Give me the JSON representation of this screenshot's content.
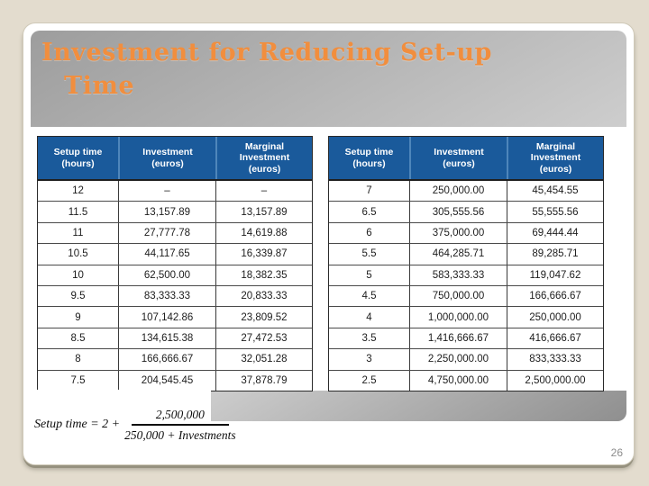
{
  "slide": {
    "title": "Investment for Reducing Set-up Time",
    "title_lines": [
      "Investment for Reducing Set-up",
      "Time"
    ],
    "page_number": "26"
  },
  "tables": {
    "headers": [
      [
        "Setup time",
        "(hours)"
      ],
      [
        "Investment",
        "(euros)"
      ],
      [
        "Marginal",
        "Investment",
        "(euros)"
      ]
    ],
    "left": {
      "rows": [
        [
          "12",
          "–",
          "–"
        ],
        [
          "11.5",
          "13,157.89",
          "13,157.89"
        ],
        [
          "11",
          "27,777.78",
          "14,619.88"
        ],
        [
          "10.5",
          "44,117.65",
          "16,339.87"
        ],
        [
          "10",
          "62,500.00",
          "18,382.35"
        ],
        [
          "9.5",
          "83,333.33",
          "20,833.33"
        ],
        [
          "9",
          "107,142.86",
          "23,809.52"
        ],
        [
          "8.5",
          "134,615.38",
          "27,472.53"
        ],
        [
          "8",
          "166,666.67",
          "32,051.28"
        ],
        [
          "7.5",
          "204,545.45",
          "37,878.79"
        ]
      ]
    },
    "right": {
      "rows": [
        [
          "7",
          "250,000.00",
          "45,454.55"
        ],
        [
          "6.5",
          "305,555.56",
          "55,555.56"
        ],
        [
          "6",
          "375,000.00",
          "69,444.44"
        ],
        [
          "5.5",
          "464,285.71",
          "89,285.71"
        ],
        [
          "5",
          "583,333.33",
          "119,047.62"
        ],
        [
          "4.5",
          "750,000.00",
          "166,666.67"
        ],
        [
          "4",
          "1,000,000.00",
          "250,000.00"
        ],
        [
          "3.5",
          "1,416,666.67",
          "416,666.67"
        ],
        [
          "3",
          "2,250,000.00",
          "833,333.33"
        ],
        [
          "2.5",
          "4,750,000.00",
          "2,500,000.00"
        ]
      ]
    }
  },
  "formula": {
    "prefix": "Setup time = 2 +",
    "numerator": "2,500,000",
    "denominator": "250,000 + Investments"
  },
  "colors": {
    "page_bg": "#e3dcce",
    "slide_bg": "#ffffff",
    "title_color": "#f18e3e",
    "header_bg": "#1a5a9b",
    "header_divider": "#4e86bb"
  }
}
